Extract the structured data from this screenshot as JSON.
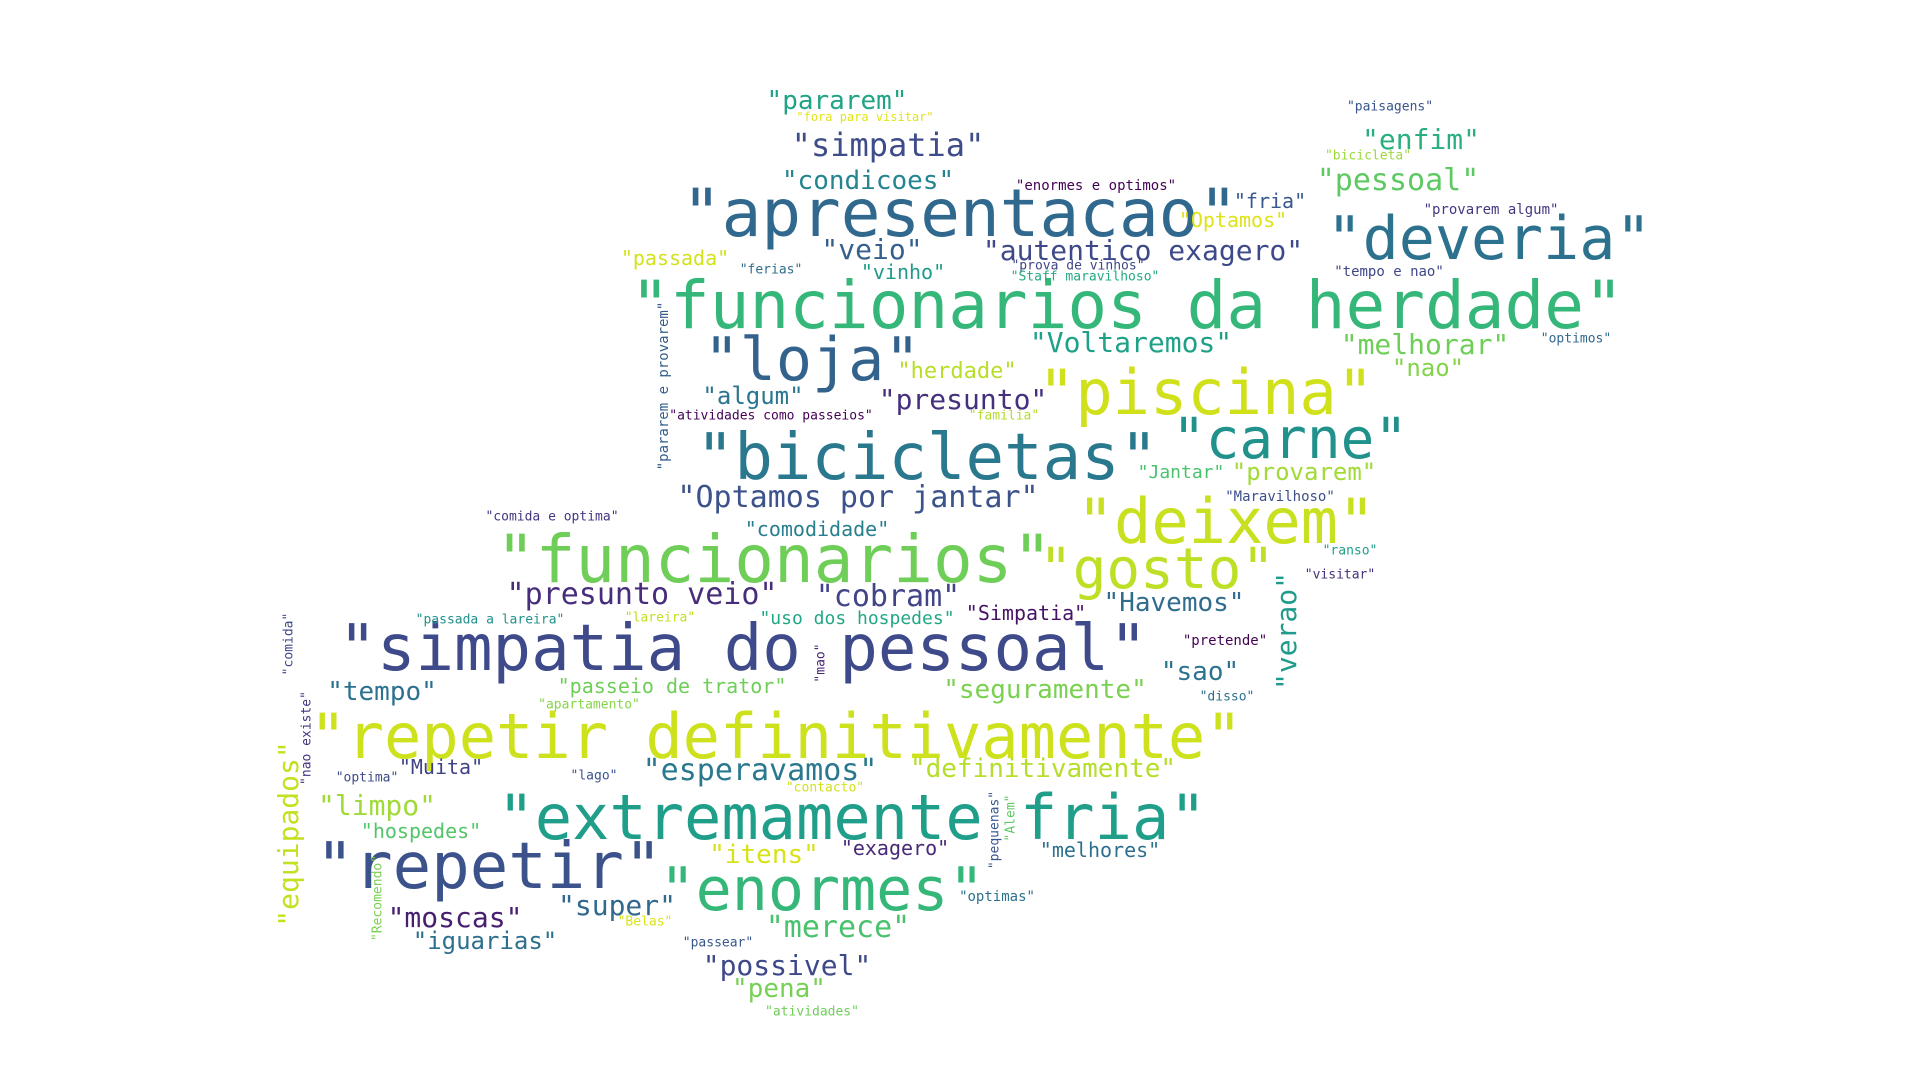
{
  "word_cloud": {
    "words": [
      {
        "text": "\"funcionarios da herdade\"",
        "color": "#35b779"
      },
      {
        "text": "\"simpatia do pessoal\"",
        "color": "#3e4a89"
      },
      {
        "text": "\"repetir definitivamente\"",
        "color": "#cde11d"
      },
      {
        "text": "\"extremamente fria\"",
        "color": "#1f9e89"
      },
      {
        "text": "\"apresentacao\"",
        "color": "#31688e"
      },
      {
        "text": "\"funcionarios\"",
        "color": "#6ece58"
      },
      {
        "text": "\"bicicletas\"",
        "color": "#2a788e"
      },
      {
        "text": "\"piscina\"",
        "color": "#d0e11c"
      },
      {
        "text": "\"repetir\"",
        "color": "#3b528b"
      },
      {
        "text": "\"enormes\"",
        "color": "#35b779"
      },
      {
        "text": "\"deveria\"",
        "color": "#2c728e"
      },
      {
        "text": "\"deixem\"",
        "color": "#c8e020"
      },
      {
        "text": "\"carne\"",
        "color": "#21918c"
      },
      {
        "text": "\"gosto\"",
        "color": "#bddf26"
      },
      {
        "text": "\"loja\"",
        "color": "#33638d"
      },
      {
        "text": "\"Optamos por jantar\"",
        "color": "#3b528b"
      },
      {
        "text": "\"autentico exagero\"",
        "color": "#3e4989"
      },
      {
        "text": "\"presunto veio\"",
        "color": "#472d7b"
      },
      {
        "text": "\"cobram\"",
        "color": "#414487"
      },
      {
        "text": "\"simpatia\"",
        "color": "#3e4c8a"
      },
      {
        "text": "\"condicoes\"",
        "color": "#25858e"
      },
      {
        "text": "\"Voltaremos\"",
        "color": "#1fa188"
      },
      {
        "text": "\"melhorar\"",
        "color": "#6ece58"
      },
      {
        "text": "\"esperavamos\"",
        "color": "#2a788e"
      },
      {
        "text": "\"definitivamente\"",
        "color": "#b5de2b"
      },
      {
        "text": "\"seguramente\"",
        "color": "#7ad151"
      },
      {
        "text": "\"presunto\"",
        "color": "#46307e"
      },
      {
        "text": "\"Havemos\"",
        "color": "#2f6c8e"
      },
      {
        "text": "\"merece\"",
        "color": "#4ac16d"
      },
      {
        "text": "\"possivel\"",
        "color": "#3e4989"
      },
      {
        "text": "\"pessoal\"",
        "color": "#5ec962"
      },
      {
        "text": "\"enfim\"",
        "color": "#2ab07f"
      },
      {
        "text": "\"veio\"",
        "color": "#355f8d"
      },
      {
        "text": "\"pararem\"",
        "color": "#20a386"
      },
      {
        "text": "\"provarem\"",
        "color": "#a2da37"
      },
      {
        "text": "\"verao\"",
        "color": "#1e9b8a"
      },
      {
        "text": "\"tempo\"",
        "color": "#2c728e"
      },
      {
        "text": "\"limpo\"",
        "color": "#a0da39"
      },
      {
        "text": "\"moscas\"",
        "color": "#481f70"
      },
      {
        "text": "\"super\"",
        "color": "#31688e"
      },
      {
        "text": "\"iguarias\"",
        "color": "#2d708e"
      },
      {
        "text": "\"itens\"",
        "color": "#d8e219"
      },
      {
        "text": "\"pena\"",
        "color": "#75d054"
      },
      {
        "text": "\"sao\"",
        "color": "#2c738e"
      },
      {
        "text": "\"nao\"",
        "color": "#84d44b"
      },
      {
        "text": "\"algum\"",
        "color": "#2a768e"
      },
      {
        "text": "\"herdade\"",
        "color": "#b8de29"
      },
      {
        "text": "\"comodidade\"",
        "color": "#277f8e"
      },
      {
        "text": "\"equipados\"",
        "color": "#c5e021"
      },
      {
        "text": "\"passeio de trator\"",
        "color": "#6ece58"
      },
      {
        "text": "\"Muita\"",
        "color": "#404387"
      },
      {
        "text": "\"exagero\"",
        "color": "#482878"
      },
      {
        "text": "\"melhores\"",
        "color": "#2e6f8e"
      },
      {
        "text": "\"hospedes\"",
        "color": "#52c569"
      },
      {
        "text": "\"vinho\"",
        "color": "#1f9a8a"
      },
      {
        "text": "\"passada\"",
        "color": "#d2e21b"
      },
      {
        "text": "\"fria\"",
        "color": "#38588c"
      },
      {
        "text": "\"Optamos\"",
        "color": "#dde318"
      },
      {
        "text": "\"Jantar\"",
        "color": "#4ac16d"
      },
      {
        "text": "\"Simpatia\"",
        "color": "#471365"
      },
      {
        "text": "\"uso dos hospedes\"",
        "color": "#22a785"
      },
      {
        "text": "\"pararem e provarem\"",
        "color": "#355e8d"
      },
      {
        "text": "\"atividades como passeios\"",
        "color": "#440154"
      },
      {
        "text": "\"enormes e optimos\"",
        "color": "#440154"
      },
      {
        "text": "\"provarem algum\"",
        "color": "#453882"
      },
      {
        "text": "\"tempo e nao\"",
        "color": "#3f4788"
      },
      {
        "text": "\"optimos\"",
        "color": "#31688e"
      },
      {
        "text": "\"paisagens\"",
        "color": "#39568c"
      },
      {
        "text": "\"bicicleta\"",
        "color": "#9dd93b"
      },
      {
        "text": "\"fora para visitar\"",
        "color": "#e2e418"
      },
      {
        "text": "\"ferias\"",
        "color": "#2f6c8e"
      },
      {
        "text": "\"prova de vinhos\"",
        "color": "#404688"
      },
      {
        "text": "\"Staff maravilhoso\"",
        "color": "#22a884"
      },
      {
        "text": "\"familia\"",
        "color": "#b2dd2d"
      },
      {
        "text": "\"comida e optima\"",
        "color": "#453581"
      },
      {
        "text": "\"Maravilhoso\"",
        "color": "#3d4e8a"
      },
      {
        "text": "\"ranso\"",
        "color": "#1f9e89"
      },
      {
        "text": "\"visitar\"",
        "color": "#46307e"
      },
      {
        "text": "\"passada a lareira\"",
        "color": "#21918c"
      },
      {
        "text": "\"lareira\"",
        "color": "#c0df25"
      },
      {
        "text": "\"pretende\"",
        "color": "#440154"
      },
      {
        "text": "\"disso\"",
        "color": "#2d708e"
      },
      {
        "text": "\"comida\"",
        "color": "#3f4788"
      },
      {
        "text": "\"nao existe\"",
        "color": "#46337f"
      },
      {
        "text": "\"mao\"",
        "color": "#482576"
      },
      {
        "text": "\"apartamento\"",
        "color": "#87d549"
      },
      {
        "text": "\"optima\"",
        "color": "#3e4989"
      },
      {
        "text": "\"lago\"",
        "color": "#3a548c"
      },
      {
        "text": "\"contacto\"",
        "color": "#d2e21b"
      },
      {
        "text": "\"pequenas\"",
        "color": "#39568c"
      },
      {
        "text": "\"Alem\"",
        "color": "#5ec962"
      },
      {
        "text": "\"optimas\"",
        "color": "#2c728e"
      },
      {
        "text": "\"Recomendo\"",
        "color": "#7ad151"
      },
      {
        "text": "\"Belas\"",
        "color": "#dde318"
      },
      {
        "text": "\"passear\"",
        "color": "#38588c"
      },
      {
        "text": "\"atividades\"",
        "color": "#6ece58"
      }
    ]
  }
}
